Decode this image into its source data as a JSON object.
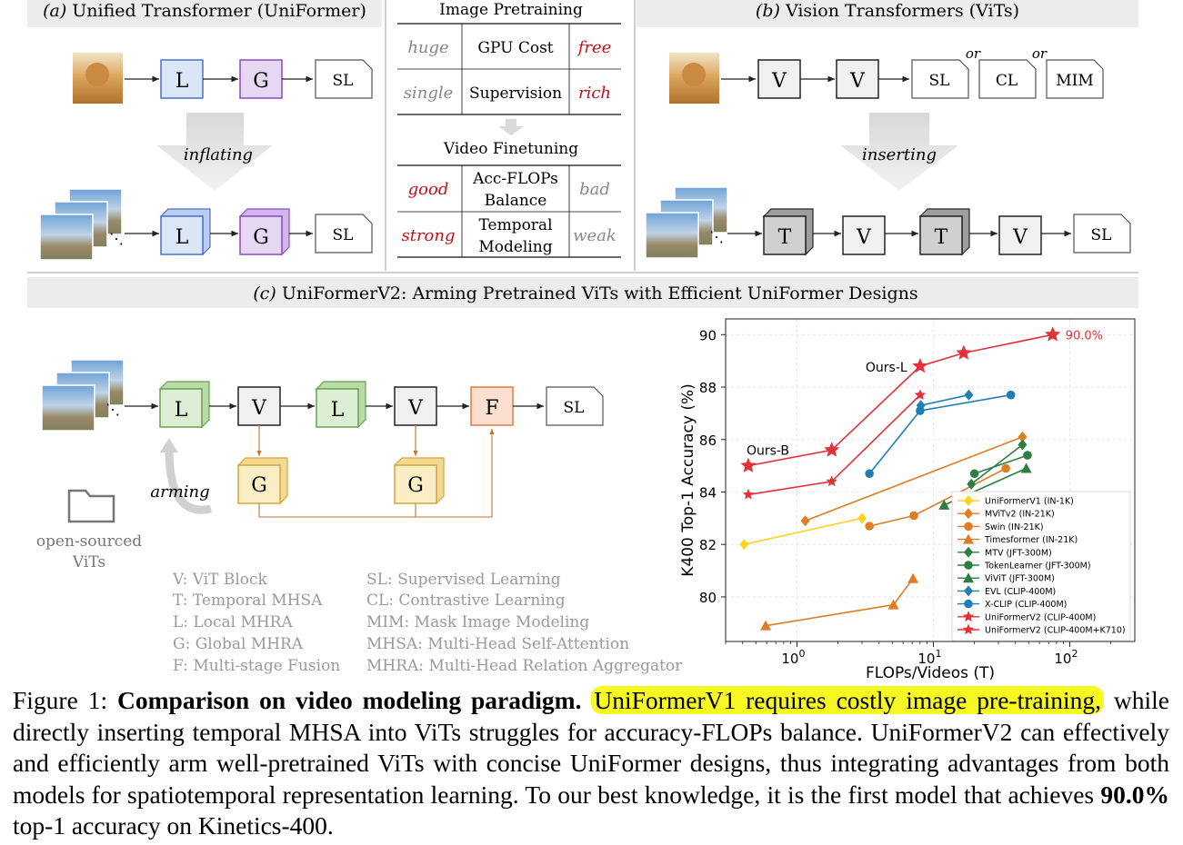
{
  "panel_a": {
    "title_letter": "(a)",
    "title_text": "Unified Transformer (UniFormer)",
    "block_local": "L",
    "block_global": "G",
    "head": "SL",
    "arrow_label": "inflating"
  },
  "panel_mid": {
    "pretrain_title": "Image Pretraining",
    "pretrain_rows": [
      {
        "left": "huge",
        "center": "GPU Cost",
        "right": "free"
      },
      {
        "left": "single",
        "center": "Supervision",
        "right": "rich"
      }
    ],
    "finetune_title": "Video Finetuning",
    "finetune_rows": [
      {
        "left": "good",
        "center": [
          "Acc-FLOPs",
          "Balance"
        ],
        "right": "bad"
      },
      {
        "left": "strong",
        "center": [
          "Temporal",
          "Modeling"
        ],
        "right": "weak"
      }
    ]
  },
  "panel_b": {
    "title_letter": "(b)",
    "title_text": "Vision Transformers (ViTs)",
    "block_vit": "V",
    "block_temporal": "T",
    "heads": [
      "SL",
      "CL",
      "MIM"
    ],
    "or_label": "or",
    "arrow_label": "inserting"
  },
  "panel_c": {
    "title_letter": "(c)",
    "title_text": "UniFormerV2: Arming Pretrained ViTs with Efficient UniFormer Designs",
    "blocks": {
      "local": "L",
      "vit": "V",
      "global": "G",
      "fusion": "F",
      "head": "SL"
    },
    "arming_label": "arming",
    "folder_label": [
      "open-sourced",
      "ViTs"
    ],
    "legend_left": [
      "V: ViT Block",
      "T: Temporal MHSA",
      "L: Local MHRA",
      "G: Global MHRA",
      "F: Multi-stage Fusion"
    ],
    "legend_right": [
      "SL: Supervised Learning",
      "CL: Contrastive Learning",
      "MIM: Mask Image Modeling",
      "MHSA: Multi-Head Self-Attention",
      "MHRA: Multi-Head Relation Aggregator"
    ]
  },
  "colors": {
    "local": "#dbe6f7",
    "local_stroke": "#4a72c4",
    "global": "#e6d7f2",
    "global_stroke": "#8a4cc0",
    "green": "#dcefd4",
    "green_stroke": "#6aa24e",
    "yellow": "#fbeec5",
    "yellow_stroke": "#d6a63a",
    "fusion": "#fbe0d2",
    "fusion_stroke": "#e07a3c",
    "red_text": "#c0121b"
  },
  "chart_data": {
    "type": "line",
    "xlabel": "FLOPs/Videos (T)",
    "ylabel": "K400 Top-1 Accuracy (%)",
    "x_scale": "log",
    "xlim": [
      0.3,
      300
    ],
    "ylim": [
      78.3,
      90.6
    ],
    "xticks": [
      1,
      10,
      100
    ],
    "xtick_labels": [
      "10^0",
      "10^1",
      "10^2"
    ],
    "yticks": [
      80,
      82,
      84,
      86,
      88,
      90
    ],
    "grid": true,
    "legend_position": "lower-right",
    "series": [
      {
        "name": "UniFormerV1 (IN-1K)",
        "color": "#ffd21f",
        "marker": "diamond",
        "x": [
          0.41,
          3.0
        ],
        "y": [
          82.0,
          83.0
        ]
      },
      {
        "name": "MViTv2 (IN-21K)",
        "color": "#e07c22",
        "marker": "diamond",
        "x": [
          1.15,
          45
        ],
        "y": [
          82.9,
          86.1
        ]
      },
      {
        "name": "Swin (IN-21K)",
        "color": "#e07c22",
        "marker": "circle",
        "x": [
          3.4,
          7.2,
          34
        ],
        "y": [
          82.7,
          83.1,
          84.9
        ]
      },
      {
        "name": "Timesformer (IN-21K)",
        "color": "#e07c22",
        "marker": "triangle",
        "x": [
          0.59,
          5.1,
          7.1
        ],
        "y": [
          78.9,
          79.7,
          80.7
        ]
      },
      {
        "name": "MTV (JFT-300M)",
        "color": "#2e7d42",
        "marker": "diamond",
        "x": [
          19,
          45
        ],
        "y": [
          84.3,
          85.8
        ]
      },
      {
        "name": "TokenLearner (JFT-300M)",
        "color": "#2e7d42",
        "marker": "circle",
        "x": [
          20,
          49
        ],
        "y": [
          84.7,
          85.4
        ]
      },
      {
        "name": "ViViT (JFT-300M)",
        "color": "#2e7d42",
        "marker": "triangle",
        "x": [
          12,
          48
        ],
        "y": [
          83.5,
          84.9
        ]
      },
      {
        "name": "EVL (CLIP-400M)",
        "color": "#1f7fb4",
        "marker": "diamond",
        "x": [
          8.1,
          18.2
        ],
        "y": [
          87.3,
          87.7
        ]
      },
      {
        "name": "X-CLIP (CLIP-400M)",
        "color": "#1f7fb4",
        "marker": "circle",
        "x": [
          3.4,
          8.0,
          37
        ],
        "y": [
          84.7,
          87.1,
          87.7
        ]
      },
      {
        "name": "UniFormerV2 (CLIP-400M)",
        "color": "#e1323a",
        "marker": "star-small",
        "x": [
          0.44,
          1.8,
          8.0
        ],
        "y": [
          83.9,
          84.4,
          87.7
        ]
      },
      {
        "name": "UniFormerV2 (CLIP-400M+K710)",
        "color": "#e1323a",
        "marker": "star",
        "x": [
          0.44,
          1.8,
          8.0,
          16.7,
          75
        ],
        "y": [
          85.0,
          85.6,
          88.8,
          89.3,
          90.0
        ]
      }
    ],
    "annotations": [
      {
        "text": "Ours-B",
        "x": 0.44,
        "y": 85.0
      },
      {
        "text": "Ours-L",
        "x": 8.0,
        "y": 88.8
      },
      {
        "text": "90.0%",
        "x": 75,
        "y": 90.0
      }
    ]
  },
  "caption": {
    "label": "Figure 1:",
    "title": "Comparison on video modeling paradigm.",
    "highlight": "UniFormerV1 requires costly image pre-training,",
    "sentence_rest": "while directly inserting temporal MHSA into ViTs struggles for accuracy-FLOPs balance.",
    "sentence_2": "UniFormerV2 can effectively and efficiently arm well-pretrained ViTs with concise UniFormer designs, thus integrating advantages from both models for spatiotemporal representation learning.",
    "sentence_3_before": "To our best knowledge, it is the first model that achieves",
    "sentence_3_bold": "90.0%",
    "sentence_3_after": "top-1 accuracy on Kinetics-400."
  }
}
